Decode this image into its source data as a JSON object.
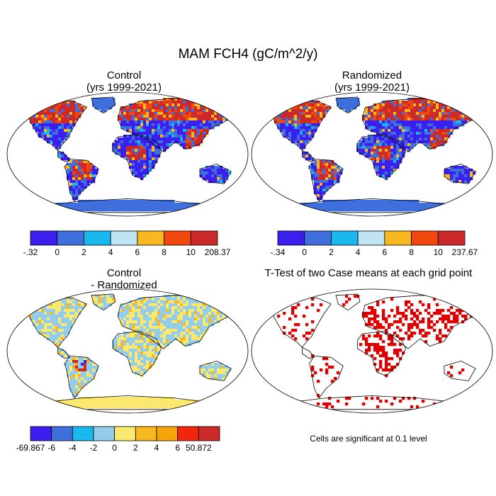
{
  "title": "MAM FCH4 (gC/m^2/y)",
  "panels": [
    {
      "id": "control",
      "title_lines": [
        "Control",
        "(yrs 1999-2021)"
      ],
      "colorbar": {
        "labels": [
          "-.32",
          "0",
          "2",
          "4",
          "6",
          "8",
          "10",
          "208.37"
        ],
        "colors": [
          "#3a1fef",
          "#3f6fdc",
          "#19b8ef",
          "#bfe4f3",
          "#f7b820",
          "#f2470f",
          "#cc2a2a"
        ]
      },
      "map_style": "flux"
    },
    {
      "id": "randomized",
      "title_lines": [
        "Randomized",
        "(yrs 1999-2021)"
      ],
      "colorbar": {
        "labels": [
          "-.34",
          "0",
          "2",
          "4",
          "6",
          "8",
          "10",
          "237.67"
        ],
        "colors": [
          "#3a1fef",
          "#3f6fdc",
          "#19b8ef",
          "#bfe4f3",
          "#f7b820",
          "#f2470f",
          "#cc2a2a"
        ]
      },
      "map_style": "flux"
    },
    {
      "id": "difference",
      "title_lines": [
        "Control",
        "- Randomized"
      ],
      "colorbar": {
        "labels": [
          "-69.867",
          "-6",
          "-4",
          "-2",
          "0",
          "2",
          "4",
          "6",
          "50.872"
        ],
        "colors": [
          "#3a1fef",
          "#3f6fdc",
          "#19b8ef",
          "#94cdea",
          "#fbe96f",
          "#f7b820",
          "#f7a30a",
          "#f2250f",
          "#cc2a2a"
        ]
      },
      "map_style": "difference"
    },
    {
      "id": "ttest",
      "title_lines": [
        "T-Test of two Case means at each grid point"
      ],
      "note": "Cells are significant at 0.1 level",
      "map_style": "significance"
    }
  ]
}
